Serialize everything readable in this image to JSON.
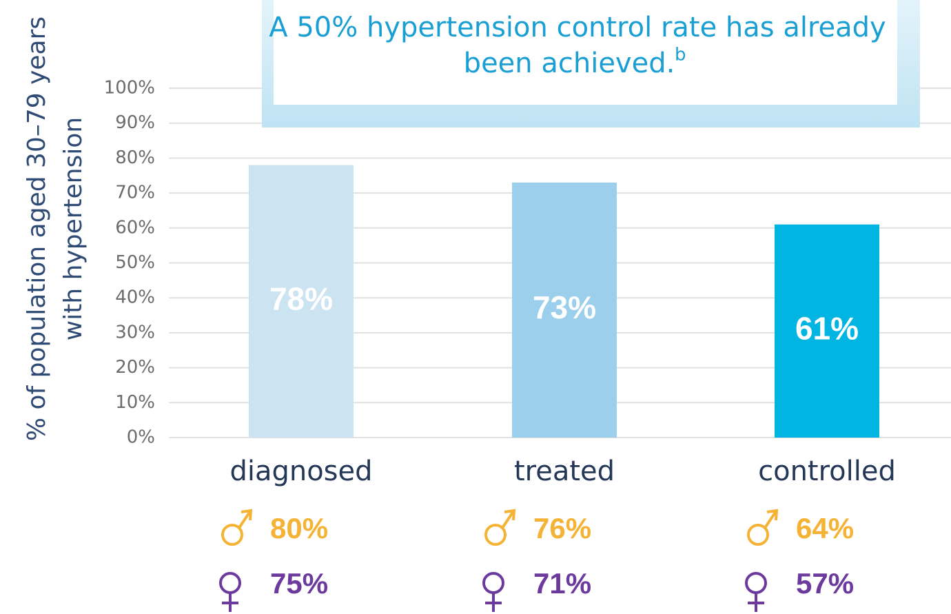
{
  "chart_data": {
    "type": "bar",
    "annotation": [
      "A 50% hypertension control rate has already",
      "been achieved."
    ],
    "annotation_superscript": "b",
    "ylabel": [
      "% of population aged 30–79 years",
      "with hypertension"
    ],
    "categories": [
      "diagnosed",
      "treated",
      "controlled"
    ],
    "values": [
      78,
      73,
      61
    ],
    "value_labels": [
      "78%",
      "73%",
      "61%"
    ],
    "colors": [
      "#cce3f1",
      "#9bcfec",
      "#00b5e2"
    ],
    "ylim": [
      0,
      100
    ],
    "yticks": [
      {
        "value": 0,
        "label": "0%"
      },
      {
        "value": 10,
        "label": "10%"
      },
      {
        "value": 20,
        "label": "20%"
      },
      {
        "value": 30,
        "label": "30%"
      },
      {
        "value": 40,
        "label": "40%"
      },
      {
        "value": 50,
        "label": "50%"
      },
      {
        "value": 60,
        "label": "60%"
      },
      {
        "value": 70,
        "label": "70%"
      },
      {
        "value": 80,
        "label": "80%"
      },
      {
        "value": 90,
        "label": "90%"
      },
      {
        "value": 100,
        "label": "100%"
      }
    ],
    "grid": true,
    "male": {
      "color": "#f5b335",
      "values": [
        80,
        76,
        64
      ],
      "value_labels": [
        "80%",
        "76%",
        "64%"
      ]
    },
    "female": {
      "color": "#6b3a9c",
      "values": [
        75,
        71,
        57
      ],
      "value_labels": [
        "75%",
        "71%",
        "57%"
      ]
    }
  }
}
